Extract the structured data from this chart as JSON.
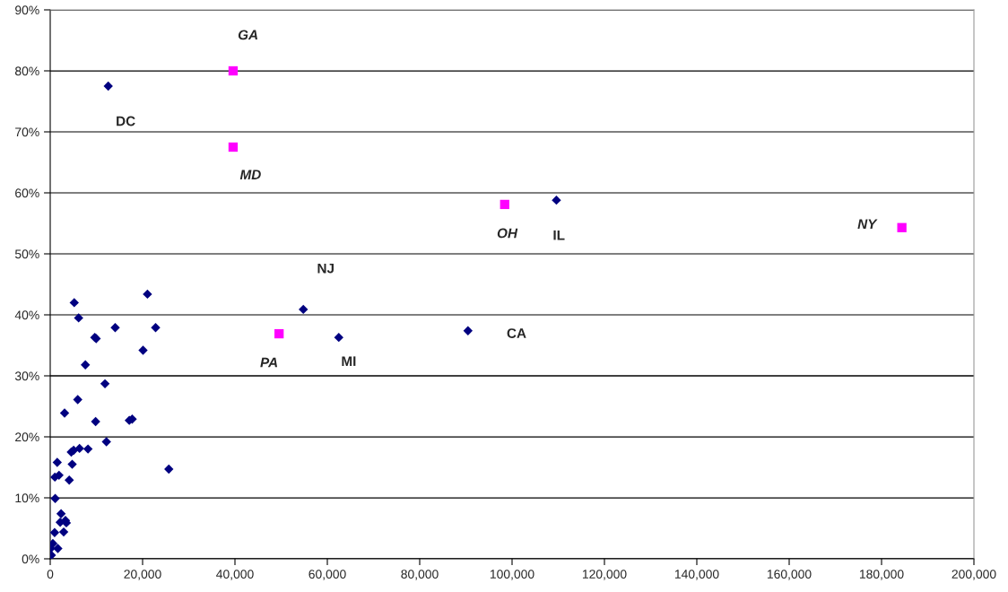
{
  "chart_data": {
    "type": "scatter",
    "series": [
      {
        "color": "#000080",
        "marker": "diamond",
        "x": [
          12560,
          109600,
          54800,
          62480,
          90450,
          5200,
          21050,
          6150,
          14070,
          22820,
          9650,
          9950,
          20100,
          7610,
          11860,
          5960,
          3110,
          9830,
          17120,
          17750,
          12170,
          6340,
          8180,
          4560,
          5070,
          1520,
          4760,
          25680,
          1010,
          1900,
          4120,
          1080,
          2350,
          2160,
          3300,
          3490,
          950,
          2920,
          570,
          100,
          1650,
          250
        ],
        "values": [
          77.5,
          58.8,
          40.9,
          36.3,
          37.4,
          42.0,
          43.4,
          39.5,
          37.9,
          37.9,
          36.3,
          36.1,
          34.2,
          31.8,
          28.7,
          26.1,
          23.9,
          22.5,
          22.7,
          22.9,
          19.2,
          18.1,
          18.0,
          17.5,
          17.8,
          15.8,
          15.5,
          14.7,
          13.4,
          13.7,
          12.9,
          9.9,
          7.4,
          6.0,
          6.3,
          5.9,
          4.3,
          4.4,
          2.5,
          1.7,
          1.7,
          0.6
        ]
      },
      {
        "color": "#ff00ff",
        "marker": "square",
        "x": [
          39600,
          39600,
          98400,
          184400,
          49550
        ],
        "values": [
          80.0,
          67.5,
          58.1,
          54.3,
          36.9
        ]
      }
    ],
    "annotations": [
      {
        "text": "GA",
        "x": 39600,
        "y": 80.0
      },
      {
        "text": "DC",
        "x": 12560,
        "y": 77.5
      },
      {
        "text": "MD",
        "x": 39600,
        "y": 67.5
      },
      {
        "text": "OH",
        "x": 98400,
        "y": 58.1
      },
      {
        "text": "IL",
        "x": 109600,
        "y": 58.8
      },
      {
        "text": "NY",
        "x": 184400,
        "y": 54.3
      },
      {
        "text": "NJ",
        "x": 54800,
        "y": 40.9
      },
      {
        "text": "CA",
        "x": 90450,
        "y": 37.4
      },
      {
        "text": "PA",
        "x": 49550,
        "y": 36.9
      },
      {
        "text": "MI",
        "x": 62480,
        "y": 36.3
      }
    ],
    "xlim": [
      0,
      200000
    ],
    "xticks": [
      0,
      {
        "value": 20000,
        "label": "20,000"
      },
      {
        "value": 40000,
        "label": "40,000"
      },
      {
        "value": 60000,
        "label": "60,000"
      },
      {
        "value": 80000,
        "label": "80,000"
      },
      {
        "value": 100000,
        "label": "100,000"
      },
      {
        "value": 120000,
        "label": "120,000"
      },
      {
        "value": 140000,
        "label": "140,000"
      },
      {
        "value": 160000,
        "label": "160,000"
      },
      {
        "value": 180000,
        "label": "180,000"
      },
      {
        "value": 200000,
        "label": "200,000"
      }
    ],
    "ylim": [
      0,
      90
    ],
    "yticks": [
      {
        "value": 0,
        "label": "0%"
      },
      {
        "value": 10,
        "label": "10%"
      },
      {
        "value": 20,
        "label": "20%"
      },
      {
        "value": 30,
        "label": "30%"
      },
      {
        "value": 40,
        "label": "40%"
      },
      {
        "value": 50,
        "label": "50%"
      },
      {
        "value": 60,
        "label": "60%"
      },
      {
        "value": 70,
        "label": "70%"
      },
      {
        "value": 80,
        "label": "80%"
      },
      {
        "value": 90,
        "label": "90%"
      }
    ],
    "grid": "y",
    "legend": false
  }
}
